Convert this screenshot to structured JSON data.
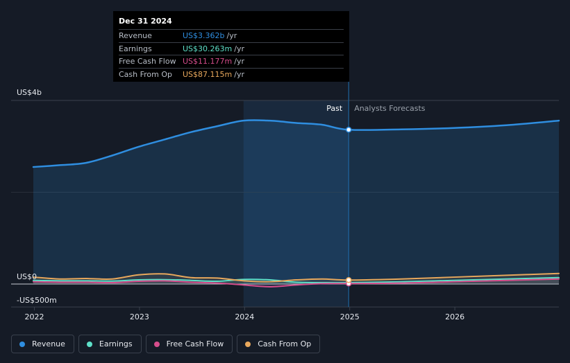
{
  "tooltip": {
    "date": "Dec 31 2024",
    "rows": [
      {
        "label": "Revenue",
        "value": "US$3.362b",
        "unit": "/yr",
        "color": "#2f8ee0"
      },
      {
        "label": "Earnings",
        "value": "US$30.263m",
        "unit": "/yr",
        "color": "#5ee0c8"
      },
      {
        "label": "Free Cash Flow",
        "value": "US$11.177m",
        "unit": "/yr",
        "color": "#d64d8c"
      },
      {
        "label": "Cash From Op",
        "value": "US$87.115m",
        "unit": "/yr",
        "color": "#e8a85c"
      }
    ]
  },
  "legend": [
    {
      "label": "Revenue",
      "color": "#2f8ee0"
    },
    {
      "label": "Earnings",
      "color": "#5ee0c8"
    },
    {
      "label": "Free Cash Flow",
      "color": "#d64d8c"
    },
    {
      "label": "Cash From Op",
      "color": "#e8a85c"
    }
  ],
  "chart_data": {
    "type": "area",
    "ylabel_top": "US$4b",
    "ylabel_zero": "US$0",
    "ylabel_bottom": "-US$500m",
    "ylim": [
      -500,
      4000
    ],
    "past_label": "Past",
    "forecast_label": "Analysts Forecasts",
    "divider_x": 2024.99,
    "highlight_start": 2023.99,
    "x_ticks": [
      {
        "value": 2022,
        "label": "2022"
      },
      {
        "value": 2023,
        "label": "2023"
      },
      {
        "value": 2024,
        "label": "2024"
      },
      {
        "value": 2025,
        "label": "2025"
      },
      {
        "value": 2026,
        "label": "2026"
      }
    ],
    "series": [
      {
        "name": "Revenue",
        "color": "#2f8ee0",
        "fill": true,
        "x": [
          2021.99,
          2022.24,
          2022.49,
          2022.74,
          2022.99,
          2023.24,
          2023.49,
          2023.74,
          2023.99,
          2024.24,
          2024.49,
          2024.74,
          2024.99,
          2025.49,
          2025.99,
          2026.49,
          2026.99
        ],
        "y": [
          2550,
          2590,
          2640,
          2800,
          2990,
          3150,
          3310,
          3440,
          3560,
          3560,
          3510,
          3470,
          3362,
          3370,
          3400,
          3460,
          3560
        ]
      },
      {
        "name": "Earnings",
        "color": "#5ee0c8",
        "fill": false,
        "x": [
          2021.99,
          2022.24,
          2022.49,
          2022.74,
          2022.99,
          2023.24,
          2023.49,
          2023.74,
          2023.99,
          2024.24,
          2024.49,
          2024.74,
          2024.99,
          2025.49,
          2025.99,
          2026.49,
          2026.99
        ],
        "y": [
          80,
          70,
          70,
          65,
          90,
          95,
          80,
          60,
          100,
          90,
          40,
          30,
          30,
          50,
          80,
          110,
          140
        ]
      },
      {
        "name": "Free Cash Flow",
        "color": "#d64d8c",
        "fill": false,
        "x": [
          2021.99,
          2022.24,
          2022.49,
          2022.74,
          2022.99,
          2023.24,
          2023.49,
          2023.74,
          2023.99,
          2024.24,
          2024.49,
          2024.74,
          2024.99,
          2025.49,
          2025.99,
          2026.49,
          2026.99
        ],
        "y": [
          50,
          40,
          40,
          30,
          60,
          70,
          40,
          20,
          -20,
          -60,
          -20,
          10,
          11,
          20,
          50,
          80,
          110
        ]
      },
      {
        "name": "Cash From Op",
        "color": "#e8a85c",
        "fill": false,
        "x": [
          2021.99,
          2022.24,
          2022.49,
          2022.74,
          2022.99,
          2023.24,
          2023.49,
          2023.74,
          2023.99,
          2024.24,
          2024.49,
          2024.74,
          2024.99,
          2025.49,
          2025.99,
          2026.49,
          2026.99
        ],
        "y": [
          150,
          110,
          120,
          110,
          200,
          220,
          140,
          130,
          70,
          50,
          90,
          110,
          87,
          110,
          150,
          190,
          230
        ]
      }
    ]
  }
}
